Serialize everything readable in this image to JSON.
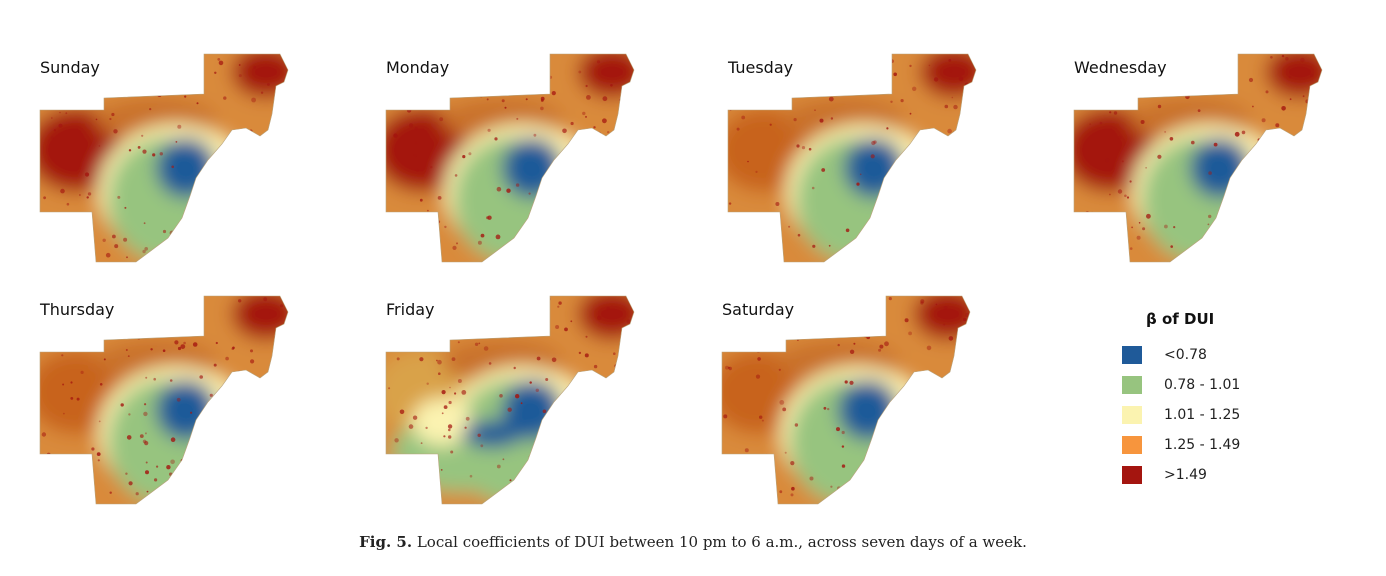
{
  "panels": [
    {
      "day": "Sunday",
      "west_level": "high",
      "east_level": "high"
    },
    {
      "day": "Monday",
      "west_level": "high",
      "east_level": "high"
    },
    {
      "day": "Tuesday",
      "west_level": "mid",
      "east_level": "high"
    },
    {
      "day": "Wednesday",
      "west_level": "high",
      "east_level": "high"
    },
    {
      "day": "Thursday",
      "west_level": "mid",
      "east_level": "high"
    },
    {
      "day": "Friday",
      "west_level": "low",
      "east_level": "high"
    },
    {
      "day": "Saturday",
      "west_level": "mid",
      "east_level": "high"
    }
  ],
  "legend": {
    "title": "β of DUI",
    "items": [
      {
        "label": "<0.78",
        "color": "#1f5a99"
      },
      {
        "label": "0.78 - 1.01",
        "color": "#97c47f"
      },
      {
        "label": "1.01 - 1.25",
        "color": "#fbf3b0"
      },
      {
        "label": "1.25 - 1.49",
        "color": "#f7953d"
      },
      {
        "label": ">1.49",
        "color": "#a4150f"
      }
    ]
  },
  "caption": {
    "fig_label": "Fig. 5.",
    "text": "Local coefficients of DUI between 10 pm to 6 a.m., across seven days of a week."
  }
}
